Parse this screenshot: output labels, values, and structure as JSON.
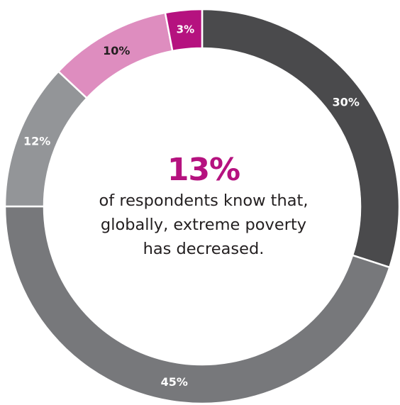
{
  "chart_data": {
    "type": "pie",
    "variant": "donut",
    "slices": [
      {
        "label": "30%",
        "value": 30,
        "color": "#4a4a4c"
      },
      {
        "label": "45%",
        "value": 45,
        "color": "#77787b"
      },
      {
        "label": "12%",
        "value": 12,
        "color": "#939598"
      },
      {
        "label": "10%",
        "value": 10,
        "color": "#de8dbf"
      },
      {
        "label": "3%",
        "value": 3,
        "color": "#b5127f"
      }
    ],
    "center": {
      "headline": "13%",
      "lines": [
        "of respondents know that,",
        "globally, extreme poverty",
        "has decreased."
      ],
      "headline_color": "#b5127f"
    },
    "legend": "none"
  }
}
